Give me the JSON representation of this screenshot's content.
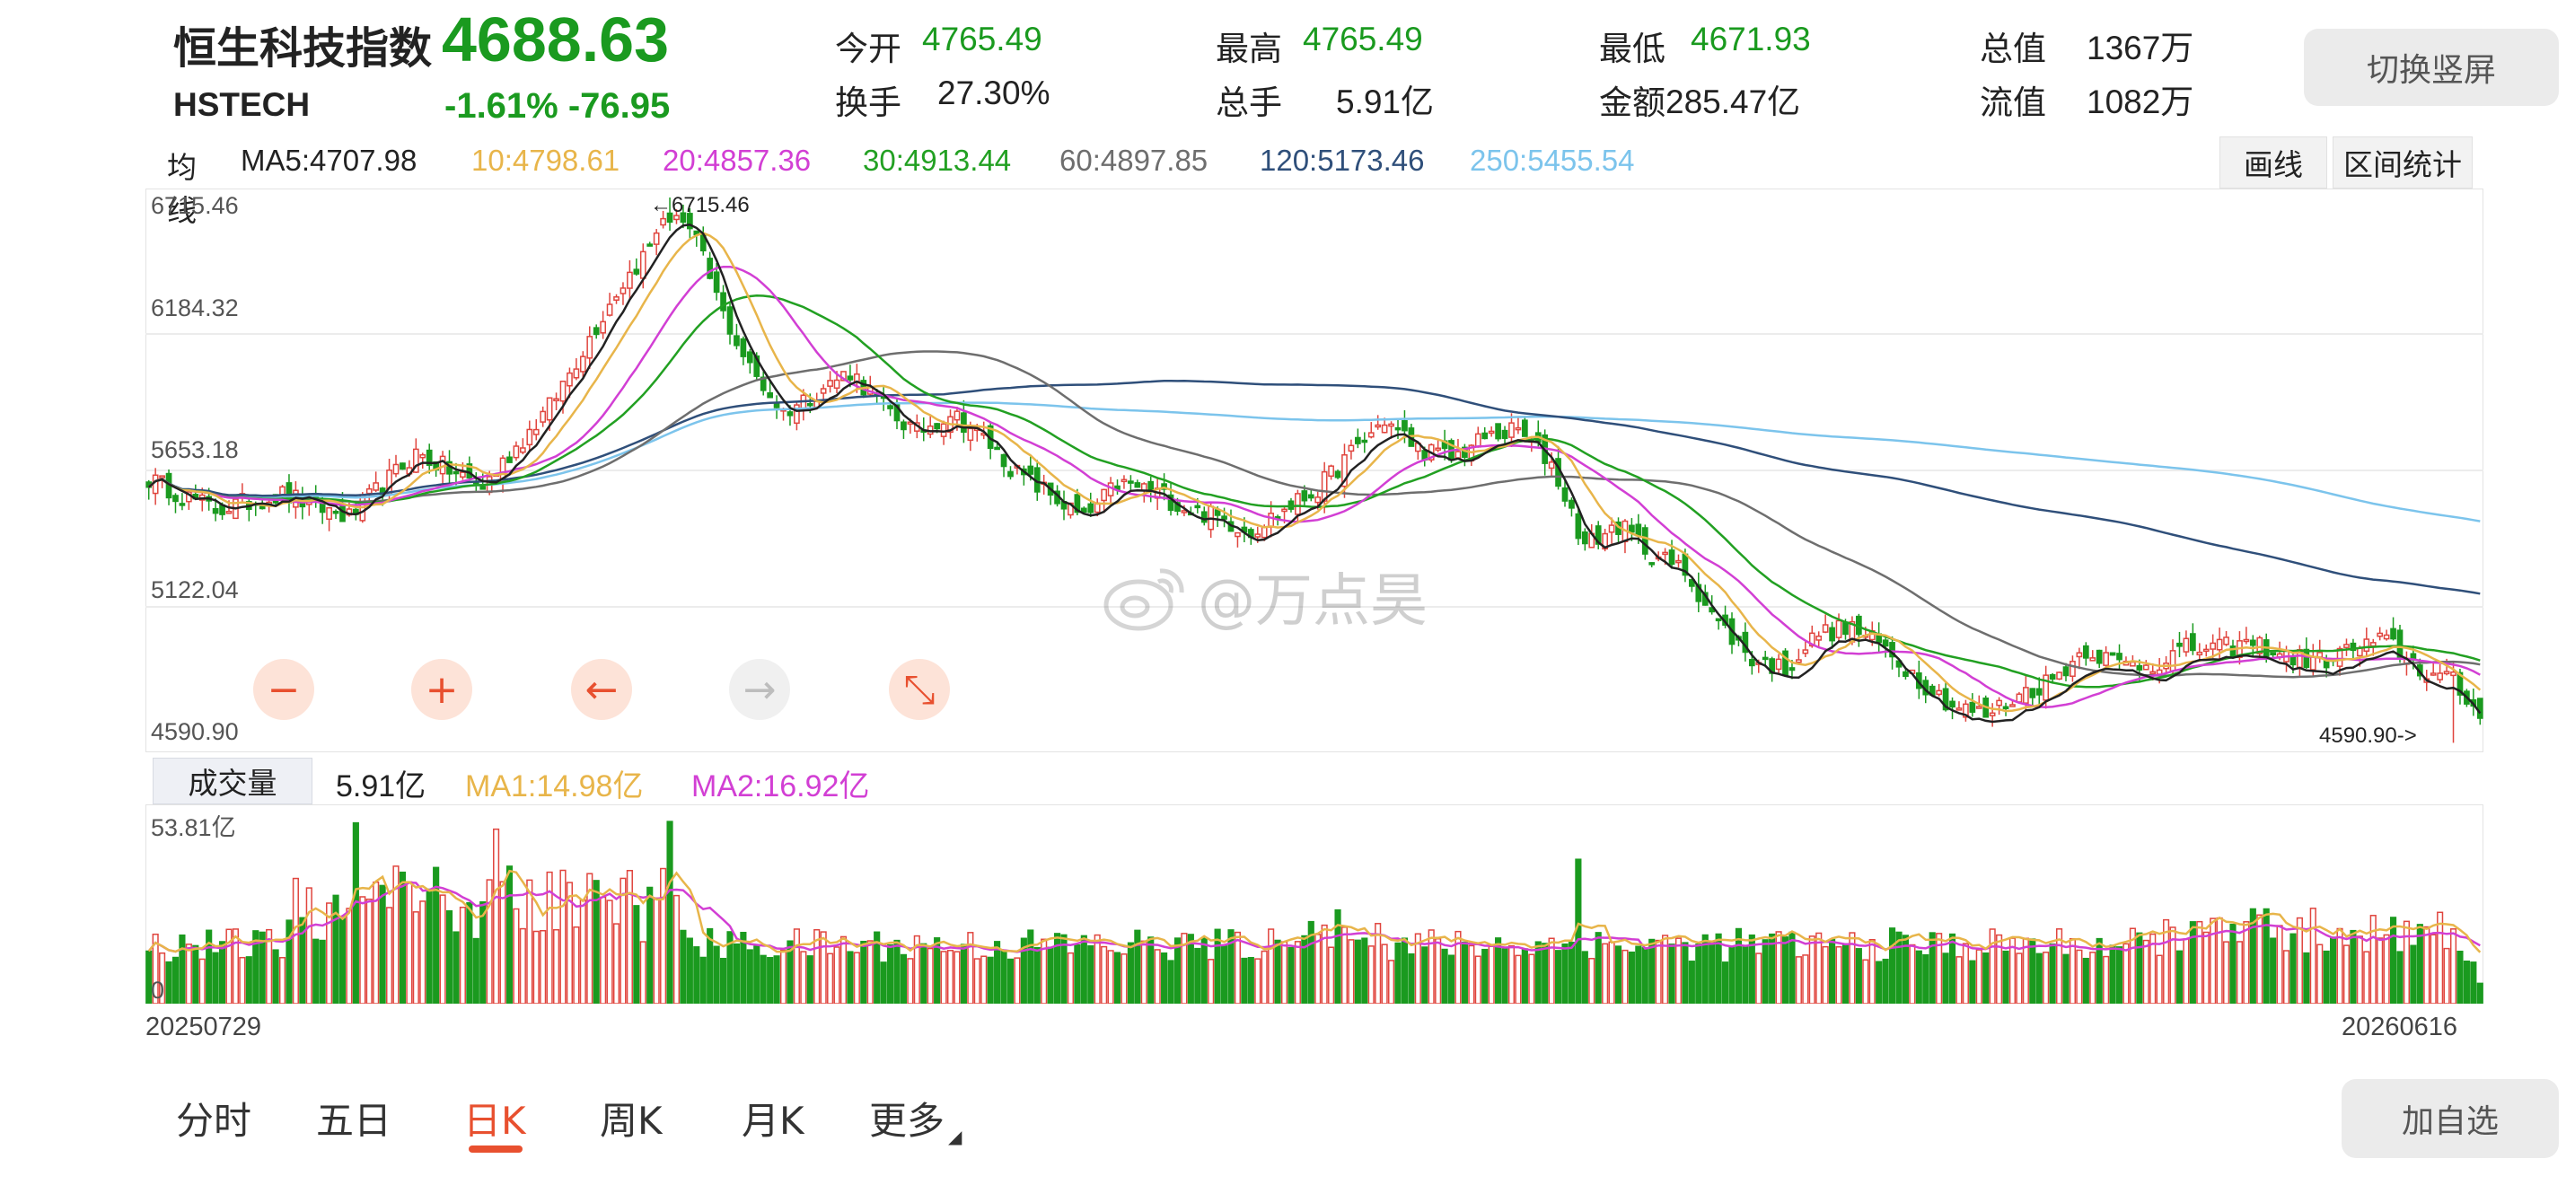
{
  "header": {
    "name": "恒生科技指数",
    "code": "HSTECH",
    "price": "4688.63",
    "change": "-1.61% -76.95",
    "stats": [
      {
        "label": "今开",
        "value": "4765.49",
        "tone": "green"
      },
      {
        "label": "换手",
        "value": "27.30%",
        "tone": "dark"
      },
      {
        "label": "最高",
        "value": "4765.49",
        "tone": "green"
      },
      {
        "label": "总手",
        "value": "5.91亿",
        "tone": "dark"
      },
      {
        "label": "最低",
        "value": "4671.93",
        "tone": "green"
      },
      {
        "label": "金额",
        "value": "285.47亿",
        "tone": "dark"
      },
      {
        "label": "总值",
        "value": "1367万",
        "tone": "dark"
      },
      {
        "label": "流值",
        "value": "1082万",
        "tone": "dark"
      }
    ],
    "switch_button": "切换竖屏"
  },
  "ma_bar": {
    "prefix": "均线",
    "items": [
      {
        "text": "MA5:4707.98",
        "color": "#222222"
      },
      {
        "text": "10:4798.61",
        "color": "#e8b54a"
      },
      {
        "text": "20:4857.36",
        "color": "#d23fd4"
      },
      {
        "text": "30:4913.44",
        "color": "#22a022"
      },
      {
        "text": "60:4897.85",
        "color": "#6e6e6e"
      },
      {
        "text": "120:5173.46",
        "color": "#2f4f7a"
      },
      {
        "text": "250:5455.54",
        "color": "#7cc4ec"
      }
    ],
    "draw_button": "画线",
    "interval_button": "区间统计"
  },
  "price_axis": [
    "6715.46",
    "6184.32",
    "5653.18",
    "5122.04",
    "4590.90"
  ],
  "price_chart": {
    "high_marker": "←6715.46",
    "low_marker": "4590.90->",
    "watermark": "@万点昊",
    "nav_buttons": [
      {
        "name": "zoom-out-button",
        "glyph": "−",
        "active": true
      },
      {
        "name": "zoom-in-button",
        "glyph": "+",
        "active": true
      },
      {
        "name": "scroll-left-button",
        "glyph": "←",
        "active": true
      },
      {
        "name": "scroll-right-button",
        "glyph": "→",
        "active": false
      },
      {
        "name": "reset-zoom-button",
        "glyph": "⤡",
        "active": true
      }
    ]
  },
  "volume": {
    "label": "成交量",
    "value": "5.91亿",
    "ma1": "MA1:14.98亿",
    "ma2": "MA2:16.92亿",
    "axis_top": "53.81亿",
    "axis_bottom": "0"
  },
  "dates": {
    "start": "20250729",
    "end": "20260616"
  },
  "bottom_tabs": [
    {
      "label": "分时",
      "active": false
    },
    {
      "label": "五日",
      "active": false
    },
    {
      "label": "日K",
      "active": true
    },
    {
      "label": "周K",
      "active": false
    },
    {
      "label": "月K",
      "active": false
    },
    {
      "label": "更多",
      "active": false
    }
  ],
  "add_watch_button": "加自选",
  "colors": {
    "up": "#e0453e",
    "down": "#1a9a1f",
    "ma5": "#222222",
    "ma10": "#e8b54a",
    "ma20": "#d23fd4",
    "ma30": "#22a022",
    "ma60": "#6e6e6e",
    "ma120": "#2f4f7a",
    "ma250": "#7cc4ec",
    "accent": "#e8502f"
  },
  "chart_data": {
    "type": "candlestick",
    "price_range": [
      4590.9,
      6715.46
    ],
    "period": [
      "20250729",
      "20260616"
    ],
    "trend_close": [
      [
        0,
        5620
      ],
      [
        10,
        5500
      ],
      [
        20,
        5560
      ],
      [
        30,
        5470
      ],
      [
        40,
        5720
      ],
      [
        50,
        5590
      ],
      [
        60,
        5900
      ],
      [
        70,
        6350
      ],
      [
        75,
        6520
      ],
      [
        78,
        6715
      ],
      [
        82,
        6540
      ],
      [
        86,
        6260
      ],
      [
        90,
        6050
      ],
      [
        95,
        5880
      ],
      [
        100,
        5960
      ],
      [
        105,
        6040
      ],
      [
        110,
        5900
      ],
      [
        115,
        5800
      ],
      [
        120,
        5880
      ],
      [
        125,
        5780
      ],
      [
        130,
        5640
      ],
      [
        135,
        5560
      ],
      [
        140,
        5460
      ],
      [
        145,
        5600
      ],
      [
        150,
        5580
      ],
      [
        155,
        5510
      ],
      [
        160,
        5470
      ],
      [
        165,
        5420
      ],
      [
        170,
        5500
      ],
      [
        175,
        5580
      ],
      [
        180,
        5720
      ],
      [
        185,
        5850
      ],
      [
        190,
        5740
      ],
      [
        195,
        5700
      ],
      [
        200,
        5780
      ],
      [
        205,
        5810
      ],
      [
        210,
        5680
      ],
      [
        215,
        5360
      ],
      [
        220,
        5440
      ],
      [
        225,
        5330
      ],
      [
        230,
        5260
      ],
      [
        235,
        5060
      ],
      [
        240,
        4920
      ],
      [
        245,
        4880
      ],
      [
        250,
        5020
      ],
      [
        255,
        5040
      ],
      [
        260,
        4960
      ],
      [
        265,
        4840
      ],
      [
        270,
        4740
      ],
      [
        275,
        4700
      ],
      [
        280,
        4780
      ],
      [
        285,
        4840
      ],
      [
        290,
        4960
      ],
      [
        295,
        4900
      ],
      [
        300,
        4900
      ],
      [
        305,
        4960
      ],
      [
        310,
        4960
      ],
      [
        315,
        4980
      ],
      [
        320,
        4930
      ],
      [
        325,
        4910
      ],
      [
        330,
        4960
      ],
      [
        335,
        4990
      ],
      [
        340,
        4880
      ],
      [
        345,
        4830
      ],
      [
        349,
        4688
      ]
    ],
    "ma_last": {
      "ma5": 4707.98,
      "ma10": 4798.61,
      "ma20": 4857.36,
      "ma30": 4913.44,
      "ma60": 4897.85,
      "ma120": 5173.46,
      "ma250": 5455.54
    },
    "volume_axis_max": 53.81,
    "volume_last": 5.91,
    "volume_ma1": 14.98,
    "volume_ma2": 16.92
  }
}
